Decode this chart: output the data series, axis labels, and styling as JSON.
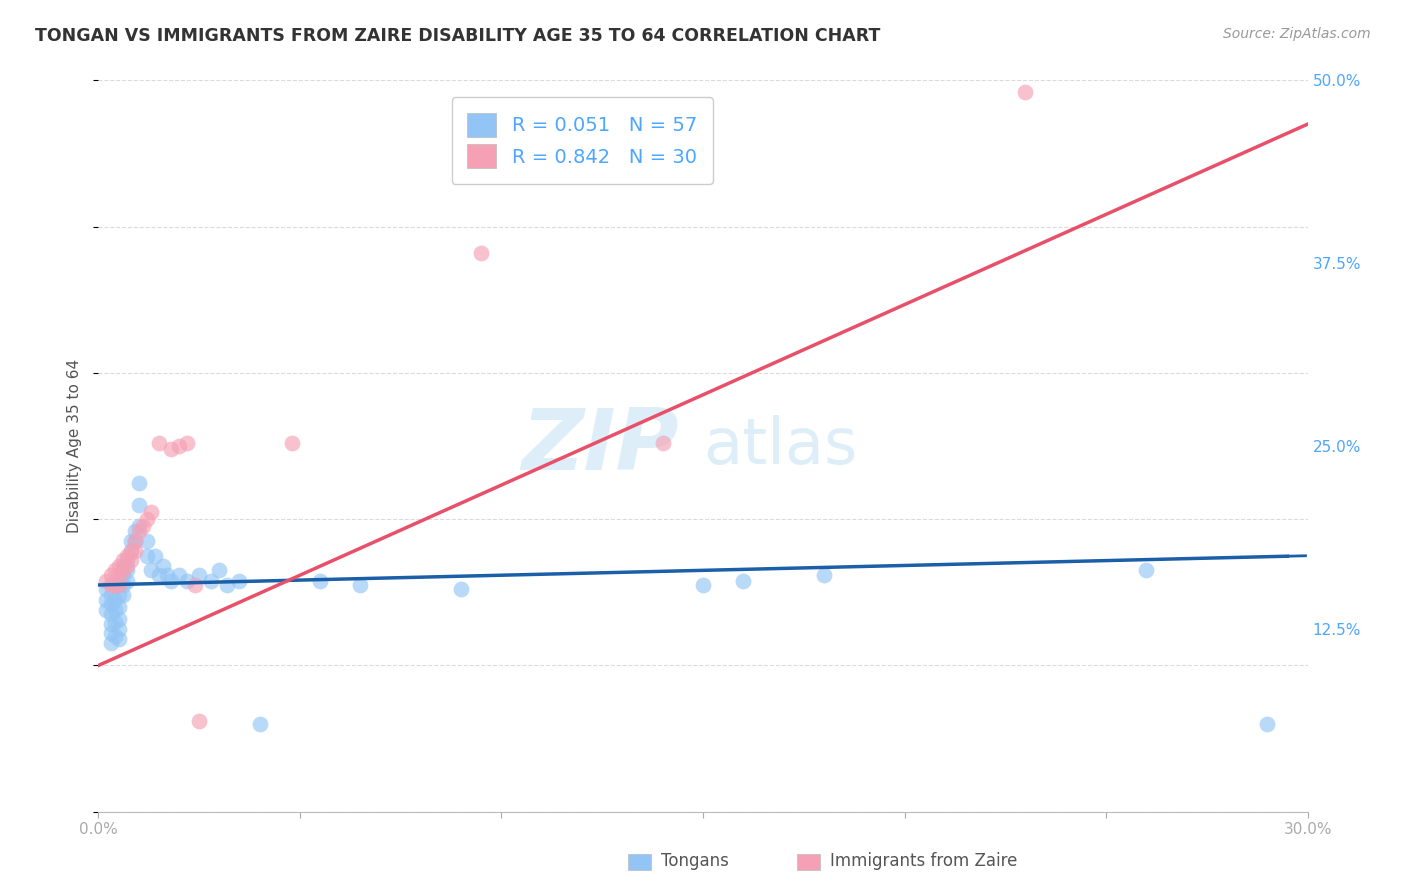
{
  "title": "TONGAN VS IMMIGRANTS FROM ZAIRE DISABILITY AGE 35 TO 64 CORRELATION CHART",
  "source": "Source: ZipAtlas.com",
  "ylabel": "Disability Age 35 to 64",
  "label_tongans": "Tongans",
  "label_zaire": "Immigrants from Zaire",
  "R_blue": "0.051",
  "N_blue": "57",
  "R_pink": "0.842",
  "N_pink": "30",
  "x_min": 0.0,
  "x_max": 0.3,
  "y_min": 0.0,
  "y_max": 0.5,
  "x_ticks": [
    0.0,
    0.05,
    0.1,
    0.15,
    0.2,
    0.25,
    0.3
  ],
  "y_ticks_right": [
    0.125,
    0.25,
    0.375,
    0.5
  ],
  "y_tick_labels_right": [
    "12.5%",
    "25.0%",
    "37.5%",
    "50.0%"
  ],
  "blue_scatter_color": "#92c5f5",
  "pink_scatter_color": "#f5a0b5",
  "blue_line_color": "#1a5fa8",
  "pink_line_color": "#e8506a",
  "title_color": "#333333",
  "source_color": "#999999",
  "tick_color": "#4da6ff",
  "label_color": "#555555",
  "grid_color": "#d8d8d8",
  "background_color": "#ffffff",
  "tongans_x": [
    0.002,
    0.002,
    0.002,
    0.003,
    0.003,
    0.003,
    0.003,
    0.003,
    0.003,
    0.004,
    0.004,
    0.004,
    0.004,
    0.005,
    0.005,
    0.005,
    0.005,
    0.005,
    0.005,
    0.006,
    0.006,
    0.006,
    0.006,
    0.007,
    0.007,
    0.007,
    0.008,
    0.008,
    0.009,
    0.009,
    0.01,
    0.01,
    0.01,
    0.012,
    0.012,
    0.013,
    0.014,
    0.015,
    0.016,
    0.017,
    0.018,
    0.02,
    0.022,
    0.025,
    0.028,
    0.03,
    0.032,
    0.035,
    0.04,
    0.055,
    0.065,
    0.09,
    0.15,
    0.16,
    0.18,
    0.26,
    0.29
  ],
  "tongans_y": [
    0.152,
    0.145,
    0.138,
    0.148,
    0.142,
    0.135,
    0.128,
    0.122,
    0.115,
    0.145,
    0.138,
    0.13,
    0.12,
    0.155,
    0.148,
    0.14,
    0.132,
    0.125,
    0.118,
    0.168,
    0.162,
    0.155,
    0.148,
    0.172,
    0.165,
    0.158,
    0.185,
    0.178,
    0.192,
    0.185,
    0.21,
    0.225,
    0.195,
    0.185,
    0.175,
    0.165,
    0.175,
    0.162,
    0.168,
    0.162,
    0.158,
    0.162,
    0.158,
    0.162,
    0.158,
    0.165,
    0.155,
    0.158,
    0.06,
    0.158,
    0.155,
    0.152,
    0.155,
    0.158,
    0.162,
    0.165,
    0.06
  ],
  "zaire_x": [
    0.002,
    0.003,
    0.003,
    0.004,
    0.004,
    0.005,
    0.005,
    0.005,
    0.006,
    0.006,
    0.007,
    0.007,
    0.008,
    0.008,
    0.009,
    0.009,
    0.01,
    0.011,
    0.012,
    0.013,
    0.015,
    0.018,
    0.02,
    0.022,
    0.024,
    0.025,
    0.048,
    0.095,
    0.14,
    0.23
  ],
  "zaire_y": [
    0.158,
    0.162,
    0.155,
    0.165,
    0.155,
    0.168,
    0.162,
    0.155,
    0.172,
    0.165,
    0.175,
    0.168,
    0.178,
    0.172,
    0.185,
    0.178,
    0.192,
    0.195,
    0.2,
    0.205,
    0.252,
    0.248,
    0.25,
    0.252,
    0.155,
    0.062,
    0.252,
    0.382,
    0.252,
    0.492
  ]
}
